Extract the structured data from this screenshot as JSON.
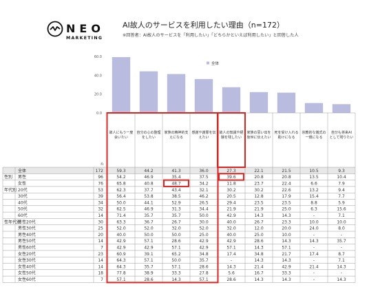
{
  "brand": {
    "name": "NEO",
    "tagline": "MARKETING"
  },
  "header": {
    "title": "AI故人のサービスを利用したい理由（n=172）",
    "note": "※回答者：AI故人のサービスを「利用したい」「どちらかといえば利用したい」と回答した人"
  },
  "colors": {
    "bar": "#b9bcdf",
    "highlight": "#e0221f",
    "total_row": "#e8e8e8",
    "grid": "#999999"
  },
  "chart_data": {
    "type": "bar",
    "ylim": [
      0,
      60
    ],
    "yticks": [
      "0.0",
      "20.0",
      "40.0",
      "60.0"
    ],
    "legend": "全体",
    "n_header": "n",
    "categories": [
      "故人にもう一度会いたい",
      "自分の心の整理をしたい",
      "家族の精神的支えになる",
      "感謝や謝罪を伝えたい",
      "故人の知識や経験を残したい",
      "家族の思い出を後世に伝えたい",
      "死を受け入れる助けになる",
      "宗教的な儀式の一環になる",
      "自分も将来AIとして残りたい"
    ],
    "values": [
      59.3,
      44.2,
      41.3,
      36.0,
      27.3,
      22.1,
      21.5,
      10.5,
      9.3
    ],
    "rows": [
      {
        "group": "",
        "label": "全体",
        "n": "172",
        "vals": [
          "59.3",
          "44.2",
          "41.3",
          "36.0",
          "27.3",
          "22.1",
          "21.5",
          "10.5",
          "9.3"
        ]
      },
      {
        "group": "性別",
        "label": "男性",
        "n": "96",
        "vals": [
          "54.2",
          "46.9",
          "35.4",
          "37.5",
          "39.6",
          "20.8",
          "20.8",
          "13.5",
          "10.4"
        ]
      },
      {
        "group": "",
        "label": "女性",
        "n": "76",
        "vals": [
          "65.8",
          "40.8",
          "48.7",
          "34.2",
          "11.8",
          "23.7",
          "22.4",
          "6.6",
          "7.9"
        ]
      },
      {
        "group": "年代別",
        "label": "20代",
        "n": "53",
        "vals": [
          "62.3",
          "37.7",
          "43.4",
          "32.1",
          "30.2",
          "30.2",
          "22.6",
          "13.2",
          "9.4"
        ]
      },
      {
        "group": "",
        "label": "30代",
        "n": "39",
        "vals": [
          "56.4",
          "53.8",
          "38.5",
          "46.2",
          "20.5",
          "12.8",
          "17.9",
          "15.4",
          "7.7"
        ]
      },
      {
        "group": "",
        "label": "40代",
        "n": "34",
        "vals": [
          "50.0",
          "44.1",
          "52.9",
          "26.5",
          "29.4",
          "23.5",
          "23.5",
          "8.8",
          "5.9"
        ]
      },
      {
        "group": "",
        "label": "50代",
        "n": "32",
        "vals": [
          "62.5",
          "46.9",
          "31.3",
          "34.4",
          "21.9",
          "21.9",
          "25.0",
          "6.3",
          "15.6"
        ]
      },
      {
        "group": "",
        "label": "60代",
        "n": "14",
        "vals": [
          "71.4",
          "35.7",
          "35.7",
          "50.0",
          "42.9",
          "14.3",
          "14.3",
          "-",
          "7.1"
        ]
      },
      {
        "group": "性年代別",
        "label": "男性20代",
        "n": "30",
        "vals": [
          "63.3",
          "36.7",
          "26.7",
          "30.0",
          "40.0",
          "26.7",
          "23.3",
          "10.0",
          "10.0"
        ]
      },
      {
        "group": "",
        "label": "男性30代",
        "n": "25",
        "vals": [
          "52.0",
          "52.0",
          "32.0",
          "52.0",
          "32.0",
          "12.0",
          "20.0",
          "24.0",
          "8.0"
        ]
      },
      {
        "group": "",
        "label": "男性40代",
        "n": "20",
        "vals": [
          "40.0",
          "50.0",
          "50.0",
          "25.0",
          "40.0",
          "25.0",
          "10.0",
          "-",
          "-"
        ]
      },
      {
        "group": "",
        "label": "男性50代",
        "n": "14",
        "vals": [
          "42.9",
          "57.1",
          "28.6",
          "42.9",
          "42.9",
          "28.6",
          "14.3",
          "14.3",
          "35.7"
        ]
      },
      {
        "group": "",
        "label": "男性60代",
        "n": "7",
        "vals": [
          "42.9",
          "42.9",
          "57.1",
          "42.9",
          "57.1",
          "14.3",
          "57.1",
          "-",
          "-"
        ]
      },
      {
        "group": "",
        "label": "女性20代",
        "n": "23",
        "vals": [
          "60.9",
          "39.1",
          "65.2",
          "34.8",
          "17.4",
          "34.8",
          "21.7",
          "17.4",
          "8.7"
        ]
      },
      {
        "group": "",
        "label": "女性30代",
        "n": "14",
        "vals": [
          "64.3",
          "57.1",
          "50.0",
          "35.7",
          "-",
          "14.3",
          "14.3",
          "-",
          "7.1"
        ]
      },
      {
        "group": "",
        "label": "女性40代",
        "n": "14",
        "vals": [
          "64.3",
          "35.7",
          "57.1",
          "28.6",
          "14.3",
          "21.4",
          "42.9",
          "21.4",
          "14.3"
        ]
      },
      {
        "group": "",
        "label": "女性50代",
        "n": "18",
        "vals": [
          "77.8",
          "38.9",
          "33.3",
          "27.8",
          "5.6",
          "16.7",
          "33.3",
          "-",
          "-"
        ]
      },
      {
        "group": "",
        "label": "女性60代",
        "n": "7",
        "vals": [
          "57.1",
          "28.6",
          "14.3",
          "57.1",
          "28.6",
          "14.3",
          "14.3",
          "-",
          "14.3"
        ]
      }
    ],
    "highlights": [
      {
        "row": 1,
        "col": 4
      },
      {
        "row": 2,
        "col": 2
      }
    ],
    "highlight_header_cols": [
      0,
      3
    ]
  }
}
